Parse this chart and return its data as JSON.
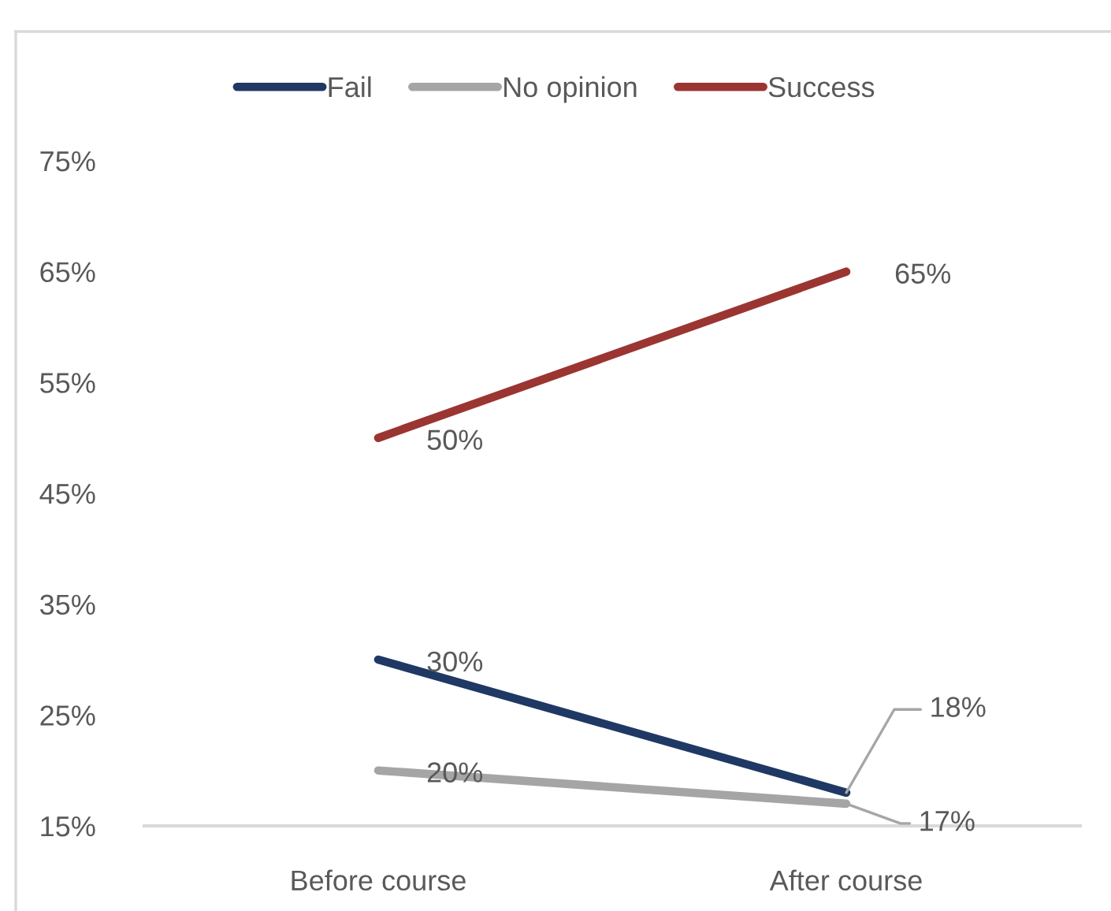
{
  "chart_data": {
    "type": "line",
    "categories": [
      "Before course",
      "After course"
    ],
    "series": [
      {
        "name": "Fail",
        "color": "#1f3864",
        "values": [
          30,
          18
        ],
        "value_labels": [
          "30%",
          "18%"
        ]
      },
      {
        "name": "No opinion",
        "color": "#a5a5a5",
        "values": [
          20,
          17
        ],
        "value_labels": [
          "20%",
          "17%"
        ]
      },
      {
        "name": "Success",
        "color": "#9b3532",
        "values": [
          50,
          65
        ],
        "value_labels": [
          "50%",
          "65%"
        ]
      }
    ],
    "ylim": [
      15,
      75
    ],
    "yticks": [
      {
        "value": 15,
        "label": "15%"
      },
      {
        "value": 25,
        "label": "25%"
      },
      {
        "value": 35,
        "label": "35%"
      },
      {
        "value": 45,
        "label": "45%"
      },
      {
        "value": 55,
        "label": "55%"
      },
      {
        "value": 65,
        "label": "65%"
      },
      {
        "value": 75,
        "label": "75%"
      }
    ],
    "legend": "top",
    "grid": false,
    "line_style": "solid"
  }
}
